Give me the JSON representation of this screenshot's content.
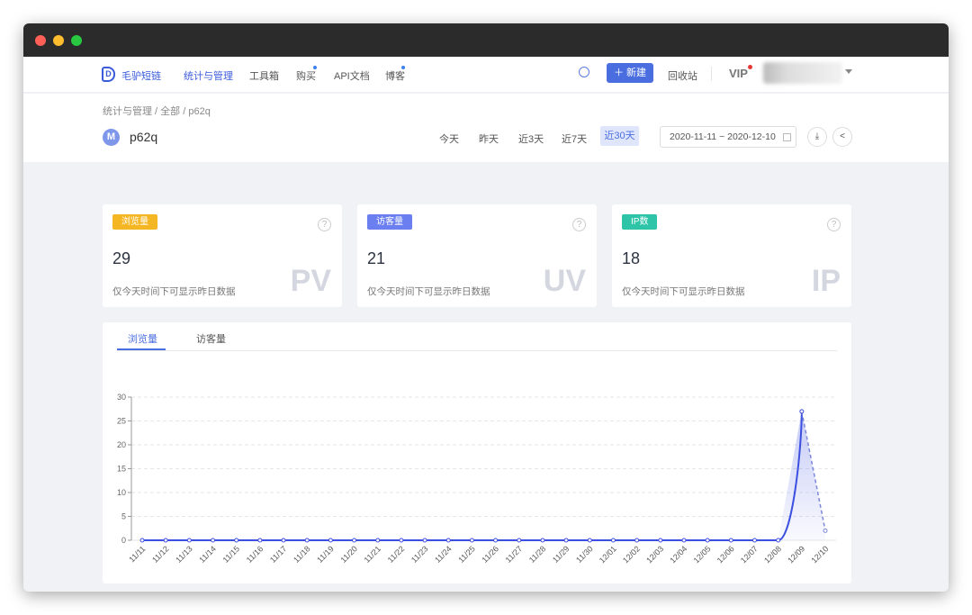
{
  "nav": {
    "brand": "毛驴短链",
    "items": [
      {
        "label": "统计与管理",
        "active": true,
        "dot": false
      },
      {
        "label": "工具箱",
        "dot": false
      },
      {
        "label": "购买",
        "dot": true
      },
      {
        "label": "API文档",
        "dot": false
      },
      {
        "label": "博客",
        "dot": true
      }
    ],
    "new_label": "新建",
    "recycle_label": "回收站",
    "vip_label": "VIP"
  },
  "breadcrumb": [
    "统计与管理",
    "全部",
    "p62q"
  ],
  "link": {
    "avatar_letter": "M",
    "name": "p62q"
  },
  "ranges": [
    {
      "label": "今天"
    },
    {
      "label": "昨天"
    },
    {
      "label": "近3天"
    },
    {
      "label": "近7天"
    },
    {
      "label": "近30天",
      "active": true
    }
  ],
  "date_range": "2020-11-11 ~ 2020-12-10",
  "cards": [
    {
      "badge": "浏览量",
      "color": "#f5b623",
      "value": "29",
      "desc": "仅今天时间下可显示昨日数据",
      "watermark": "PV"
    },
    {
      "badge": "访客量",
      "color": "#6b7ff0",
      "value": "21",
      "desc": "仅今天时间下可显示昨日数据",
      "watermark": "UV"
    },
    {
      "badge": "IP数",
      "color": "#2ec4a8",
      "value": "18",
      "desc": "仅今天时间下可显示昨日数据",
      "watermark": "IP"
    }
  ],
  "tabs": [
    "浏览量",
    "访客量"
  ],
  "chart_data": {
    "type": "area",
    "ylim": [
      0,
      30
    ],
    "yticks": [
      0,
      5,
      10,
      15,
      20,
      25,
      30
    ],
    "grid": true,
    "color": "#3b4fe0",
    "x": [
      "11/11",
      "11/12",
      "11/13",
      "11/14",
      "11/15",
      "11/16",
      "11/17",
      "11/18",
      "11/19",
      "11/20",
      "11/21",
      "11/22",
      "11/23",
      "11/24",
      "11/25",
      "11/26",
      "11/27",
      "11/28",
      "11/29",
      "11/30",
      "12/01",
      "12/02",
      "12/03",
      "12/04",
      "12/05",
      "12/06",
      "12/07",
      "12/08",
      "12/09",
      "12/10"
    ],
    "values": [
      0,
      0,
      0,
      0,
      0,
      0,
      0,
      0,
      0,
      0,
      0,
      0,
      0,
      0,
      0,
      0,
      0,
      0,
      0,
      0,
      0,
      0,
      0,
      0,
      0,
      0,
      0,
      0,
      27,
      2
    ]
  }
}
